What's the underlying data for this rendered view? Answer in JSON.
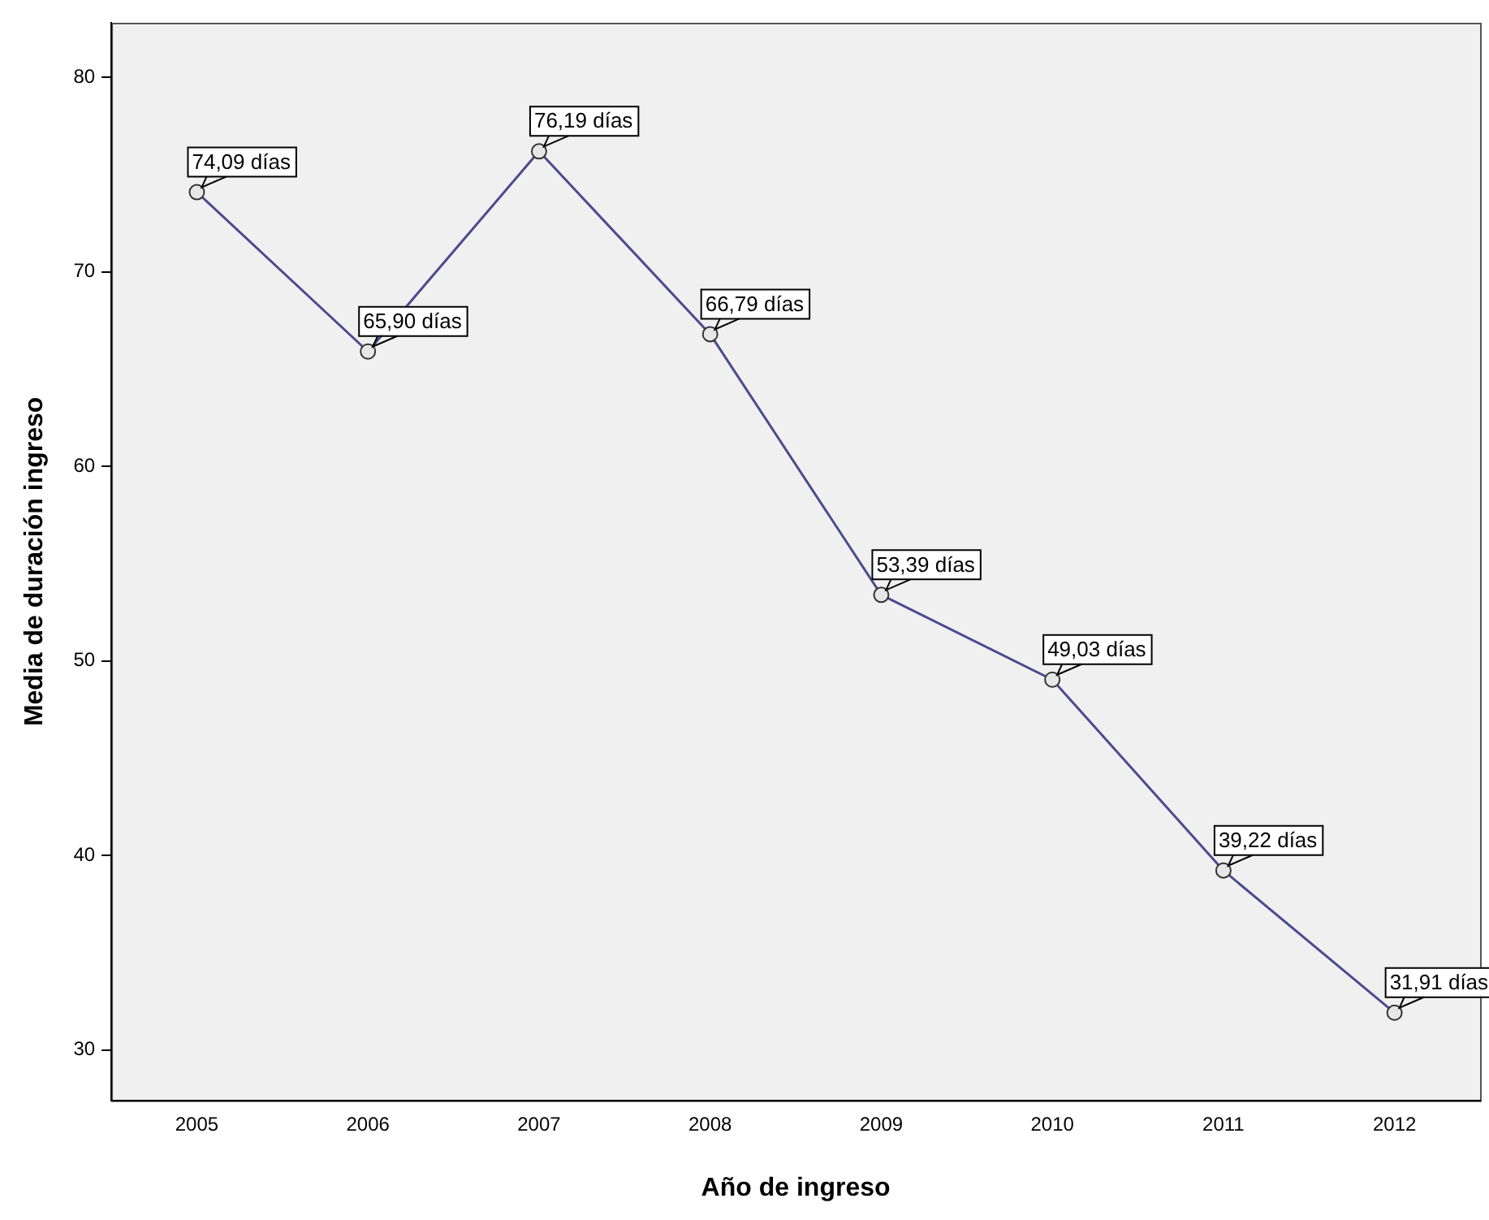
{
  "chart_data": {
    "type": "line",
    "xlabel": "Año de ingreso",
    "ylabel": "Media de duración ingreso",
    "categories": [
      "2005",
      "2006",
      "2007",
      "2008",
      "2009",
      "2010",
      "2011",
      "2012"
    ],
    "series": [
      {
        "color": "#4b4b8f",
        "values": [
          74.09,
          65.9,
          76.19,
          66.79,
          53.39,
          49.03,
          39.22,
          31.91
        ],
        "value_labels": [
          "74,09 días",
          "65,90 días",
          "76,19 días",
          "66,79 días",
          "53,39 días",
          "49,03 días",
          "39,22 días",
          "31,91 días"
        ]
      }
    ],
    "ylim": [
      27.4,
      82.8
    ],
    "yticks": [
      30,
      40,
      50,
      60,
      70,
      80
    ],
    "legend": false,
    "marker": "circle",
    "line_style": "solid"
  }
}
